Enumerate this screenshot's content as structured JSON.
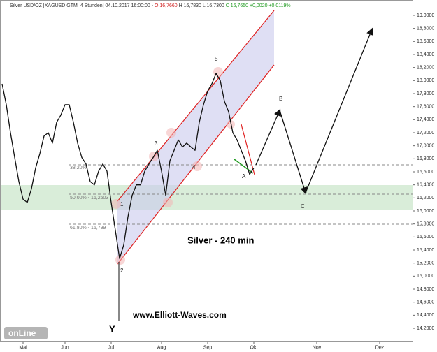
{
  "chart_data": {
    "type": "line",
    "header": [
      {
        "text": "Silver USD/OZ [XAGUSD GTM  4 Stunden] 04.10.2017 16:00:00 - ",
        "color": "#333333"
      },
      {
        "text": "O 16,7660",
        "color": "#d02020"
      },
      {
        "text": " H 16,7830 L 16,7300 ",
        "color": "#333333"
      },
      {
        "text": "C 16,7650 +0,0020 +0,0119%",
        "color": "#1f9a1f"
      }
    ],
    "title": "Silver - 240 min",
    "website": "www.Elliott-Waves.com",
    "logo": "onLine",
    "color": "#111111",
    "categories": [
      null,
      null,
      null,
      null,
      null,
      "Mai",
      null,
      null,
      null,
      null,
      null,
      null,
      null,
      null,
      null,
      "Jun",
      null,
      null,
      null,
      null,
      null,
      null,
      null,
      null,
      null,
      null,
      "Jul",
      null,
      null,
      null,
      null,
      null,
      null,
      null,
      null,
      null,
      null,
      null,
      "Aug",
      null,
      null,
      null,
      null,
      null,
      null,
      null,
      null,
      null,
      null,
      "Sep",
      null,
      null,
      null,
      null,
      null,
      null,
      null,
      null,
      null,
      null,
      "Okt",
      null,
      null,
      null,
      null,
      null,
      null,
      null,
      null,
      null,
      null,
      null,
      null,
      null,
      null,
      "Nov",
      null,
      null,
      null,
      null,
      null,
      null,
      null,
      null,
      null,
      null,
      null,
      null,
      null,
      null,
      "Dez",
      null,
      null,
      null,
      null,
      null,
      null,
      null,
      null
    ],
    "values": [
      17.95,
      17.63,
      17.2,
      16.82,
      16.45,
      16.18,
      16.13,
      16.34,
      16.66,
      16.88,
      17.15,
      17.2,
      17.04,
      17.36,
      17.47,
      17.63,
      17.63,
      17.36,
      17.04,
      16.82,
      16.72,
      16.45,
      16.4,
      16.61,
      16.72,
      16.61,
      16.13,
      15.7,
      15.27,
      15.48,
      15.91,
      16.24,
      16.4,
      16.4,
      16.61,
      16.72,
      16.82,
      16.93,
      16.61,
      16.24,
      16.77,
      16.93,
      17.09,
      16.98,
      17.04,
      16.98,
      16.93,
      17.36,
      17.63,
      17.84,
      17.95,
      18.11,
      18.0,
      17.68,
      17.52,
      17.2,
      17.09,
      16.93,
      16.77,
      16.56,
      16.66,
      null,
      null,
      null,
      null,
      null,
      null,
      null,
      null,
      null,
      null,
      null,
      null,
      null,
      null,
      null,
      null,
      null,
      null,
      null,
      null,
      null,
      null,
      null,
      null,
      null,
      null,
      null,
      null,
      null,
      null,
      null,
      null,
      null,
      null,
      null,
      null,
      null,
      null
    ],
    "ylim": [
      14.0,
      19.2
    ],
    "yticks": [
      {
        "value": 14.2,
        "label": "14,2000"
      },
      {
        "value": 14.4,
        "label": "14,4000"
      },
      {
        "value": 14.6,
        "label": "14,6000"
      },
      {
        "value": 14.8,
        "label": "14,8000"
      },
      {
        "value": 15.0,
        "label": "15,0000"
      },
      {
        "value": 15.2,
        "label": "15,2000"
      },
      {
        "value": 15.4,
        "label": "15,4000"
      },
      {
        "value": 15.6,
        "label": "15,6000"
      },
      {
        "value": 15.8,
        "label": "15,8000"
      },
      {
        "value": 16.0,
        "label": "16,0000"
      },
      {
        "value": 16.2,
        "label": "16,2000"
      },
      {
        "value": 16.4,
        "label": "16,4000"
      },
      {
        "value": 16.6,
        "label": "16,6000"
      },
      {
        "value": 16.8,
        "label": "16,8000"
      },
      {
        "value": 17.0,
        "label": "17,0000"
      },
      {
        "value": 17.2,
        "label": "17,2000"
      },
      {
        "value": 17.4,
        "label": "17,4000"
      },
      {
        "value": 17.6,
        "label": "17,6000"
      },
      {
        "value": 17.8,
        "label": "17,8000"
      },
      {
        "value": 18.0,
        "label": "18,0000"
      },
      {
        "value": 18.2,
        "label": "18,2000"
      },
      {
        "value": 18.4,
        "label": "18,4000"
      },
      {
        "value": 18.6,
        "label": "18,6000"
      },
      {
        "value": 18.8,
        "label": "18,8000"
      },
      {
        "value": 19.0,
        "label": "19,0000"
      }
    ],
    "fib_labels": [
      "38,20%",
      "50,00% - 16,2603",
      "61,80% - 15,799"
    ],
    "wave_labels": [
      "1",
      "2",
      "3",
      "4",
      "5",
      "A",
      "B",
      "C",
      "Y"
    ]
  }
}
